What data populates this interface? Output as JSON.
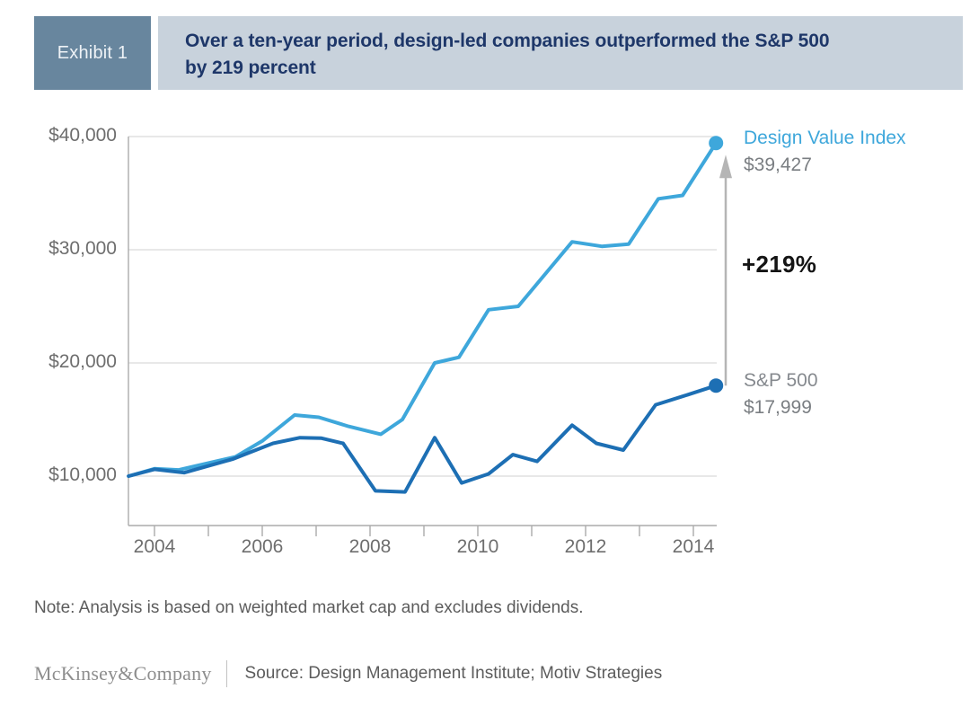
{
  "header": {
    "exhibit_label": "Exhibit 1",
    "title_line1": "Over a ten-year period, design-led companies outperformed the S&P 500",
    "title_line2": "by 219 percent"
  },
  "annotations": {
    "dvi_label": "Design Value Index",
    "dvi_value": "$39,427",
    "delta_label": "+219%",
    "sp_label": "S&P 500",
    "sp_value": "$17,999"
  },
  "note": "Note: Analysis is based on weighted market cap and excludes dividends.",
  "footer": {
    "brand": "McKinsey&Company",
    "source": "Source: Design Management Institute; Motiv Strategies"
  },
  "colors": {
    "design_line": "#3ea7db",
    "sp_line": "#1d6fb4",
    "banner_bg": "#c8d2dc",
    "exhibit_bg": "#68869e",
    "title_text": "#1e3769",
    "axis_gray": "#ababab",
    "gridline_gray": "#d9d9d9",
    "arrow_gray": "#b5b5b5"
  },
  "chart_data": {
    "type": "line",
    "title": "Over a ten-year period, design-led companies outperformed the S&P 500 by 219 percent",
    "x_axis": {
      "start": 2003.5,
      "end": 2014.5,
      "tick_years": [
        2004,
        2005,
        2006,
        2007,
        2008,
        2009,
        2010,
        2011,
        2012,
        2013,
        2014
      ],
      "labeled_years": [
        "2004",
        "2006",
        "2008",
        "2010",
        "2012",
        "2014"
      ]
    },
    "y_axis": {
      "ticks": [
        {
          "value": 40000,
          "label": "$40,000"
        },
        {
          "value": 30000,
          "label": "$30,000"
        },
        {
          "value": 20000,
          "label": "$20,000"
        },
        {
          "value": 10000,
          "label": "$10,000"
        }
      ],
      "ylim": [
        5600,
        41500
      ],
      "gridlines": true
    },
    "series": [
      {
        "name": "Design Value Index",
        "color": "#3ea7db",
        "end_label": "$39,427",
        "final_value": 39427,
        "points": [
          [
            2003.52,
            10000
          ],
          [
            2004.0,
            10650
          ],
          [
            2004.45,
            10550
          ],
          [
            2005.0,
            11150
          ],
          [
            2005.5,
            11700
          ],
          [
            2006.0,
            13100
          ],
          [
            2006.6,
            15400
          ],
          [
            2007.05,
            15200
          ],
          [
            2007.6,
            14400
          ],
          [
            2008.2,
            13700
          ],
          [
            2008.6,
            15000
          ],
          [
            2009.2,
            20000
          ],
          [
            2009.65,
            20500
          ],
          [
            2010.2,
            24700
          ],
          [
            2010.75,
            25000
          ],
          [
            2011.75,
            30700
          ],
          [
            2012.3,
            30300
          ],
          [
            2012.8,
            30500
          ],
          [
            2013.35,
            34500
          ],
          [
            2013.8,
            34800
          ],
          [
            2014.42,
            39427
          ]
        ]
      },
      {
        "name": "S&P 500",
        "color": "#1d6fb4",
        "end_label": "$17,999",
        "final_value": 17999,
        "points": [
          [
            2003.52,
            10000
          ],
          [
            2004.0,
            10600
          ],
          [
            2004.55,
            10300
          ],
          [
            2005.45,
            11500
          ],
          [
            2006.2,
            12900
          ],
          [
            2006.7,
            13400
          ],
          [
            2007.1,
            13350
          ],
          [
            2007.5,
            12900
          ],
          [
            2008.1,
            8700
          ],
          [
            2008.65,
            8600
          ],
          [
            2009.2,
            13400
          ],
          [
            2009.7,
            9400
          ],
          [
            2010.2,
            10200
          ],
          [
            2010.65,
            11900
          ],
          [
            2011.1,
            11300
          ],
          [
            2011.75,
            14500
          ],
          [
            2012.2,
            12900
          ],
          [
            2012.7,
            12300
          ],
          [
            2013.3,
            16300
          ],
          [
            2013.9,
            17200
          ],
          [
            2014.42,
            17999
          ]
        ]
      }
    ],
    "annotation": {
      "text": "+219%",
      "arrow": "vertical gray arrow from S&P 500 endpoint up to Design Value Index endpoint"
    },
    "legend_position": "right of line endpoints"
  }
}
